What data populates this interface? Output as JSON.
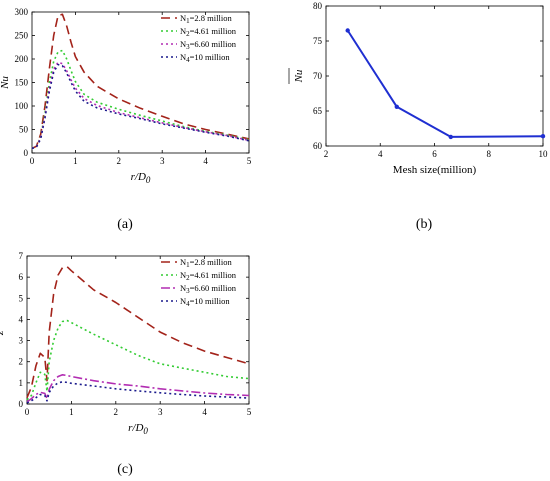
{
  "panels": {
    "a": {
      "label": "(a)"
    },
    "b": {
      "label": "(b)"
    },
    "c": {
      "label": "(c)"
    }
  },
  "chart_data": [
    {
      "id": "a",
      "type": "line",
      "title": "",
      "xlabel": "r/D0",
      "ylabel": "Nu",
      "xlim": [
        0,
        5
      ],
      "ylim": [
        0,
        300
      ],
      "xticks": [
        "0",
        "1",
        "2",
        "3",
        "4",
        "5"
      ],
      "yticks": [
        "0",
        "50",
        "100",
        "150",
        "200",
        "250",
        "300"
      ],
      "grid": false,
      "legend": "top-right",
      "series": [
        {
          "name": "N1=2.8 million",
          "color": "#a3231a",
          "dash": "9,5",
          "x": [
            0,
            0.1,
            0.2,
            0.3,
            0.4,
            0.5,
            0.6,
            0.7,
            0.8,
            0.9,
            1.0,
            1.2,
            1.5,
            2.0,
            2.5,
            3.0,
            3.5,
            4.0,
            4.5,
            5.0
          ],
          "y": [
            10,
            14,
            40,
            100,
            180,
            250,
            292,
            295,
            270,
            235,
            205,
            172,
            142,
            115,
            95,
            78,
            62,
            50,
            40,
            30
          ]
        },
        {
          "name": "N2=4.61 million",
          "color": "#33cc33",
          "dash": "2,3",
          "x": [
            0,
            0.1,
            0.2,
            0.3,
            0.4,
            0.5,
            0.6,
            0.7,
            0.8,
            0.9,
            1.0,
            1.2,
            1.5,
            2.0,
            2.5,
            3.0,
            3.5,
            4.0,
            4.5,
            5.0
          ],
          "y": [
            10,
            13,
            35,
            85,
            150,
            195,
            215,
            218,
            200,
            175,
            152,
            125,
            108,
            93,
            80,
            68,
            56,
            46,
            38,
            28
          ]
        },
        {
          "name": "N3=6.60 million",
          "color": "#b22db2",
          "dash": "2,3",
          "x": [
            0,
            0.1,
            0.2,
            0.3,
            0.4,
            0.5,
            0.6,
            0.7,
            0.8,
            0.9,
            1.0,
            1.2,
            1.5,
            2.0,
            2.5,
            3.0,
            3.5,
            4.0,
            4.5,
            5.0
          ],
          "y": [
            10,
            13,
            33,
            78,
            138,
            178,
            193,
            190,
            175,
            155,
            138,
            116,
            101,
            86,
            75,
            64,
            54,
            45,
            37,
            27
          ]
        },
        {
          "name": "N4=10 million",
          "color": "#1a1a8c",
          "dash": "2,3",
          "x": [
            0,
            0.1,
            0.2,
            0.3,
            0.4,
            0.5,
            0.6,
            0.7,
            0.8,
            0.9,
            1.0,
            1.2,
            1.5,
            2.0,
            2.5,
            3.0,
            3.5,
            4.0,
            4.5,
            5.0
          ],
          "y": [
            10,
            12,
            30,
            75,
            132,
            172,
            188,
            186,
            170,
            150,
            132,
            110,
            96,
            83,
            73,
            62,
            53,
            44,
            36,
            26
          ]
        }
      ]
    },
    {
      "id": "b",
      "type": "line",
      "title": "",
      "xlabel": "Mesh size(million)",
      "ylabel": "Nu",
      "ylabel_overline": true,
      "xlim": [
        2,
        10
      ],
      "ylim": [
        60,
        80
      ],
      "xticks": [
        "2",
        "4",
        "6",
        "8",
        "10"
      ],
      "yticks": [
        "60",
        "65",
        "70",
        "75",
        "80"
      ],
      "grid": false,
      "series": [
        {
          "color": "#1f2fd1",
          "x": [
            2.8,
            4.61,
            6.6,
            10
          ],
          "y": [
            76.5,
            65.6,
            61.3,
            61.4
          ]
        }
      ]
    },
    {
      "id": "c",
      "type": "line",
      "title": "",
      "xlabel": "r/D0",
      "ylabel": "z+",
      "xlim": [
        0,
        5
      ],
      "ylim": [
        0,
        7
      ],
      "xticks": [
        "0",
        "1",
        "2",
        "3",
        "4",
        "5"
      ],
      "yticks": [
        "0",
        "1",
        "2",
        "3",
        "4",
        "5",
        "6",
        "7"
      ],
      "grid": false,
      "legend": "top-right",
      "series": [
        {
          "name": "N1=2.8 million",
          "color": "#a3231a",
          "dash": "9,5",
          "x": [
            0,
            0.1,
            0.2,
            0.3,
            0.4,
            0.45,
            0.5,
            0.6,
            0.7,
            0.8,
            0.9,
            1.0,
            1.5,
            2.0,
            2.5,
            3.0,
            3.5,
            4.0,
            4.5,
            5.0
          ],
          "y": [
            0.3,
            0.8,
            1.8,
            2.4,
            2.2,
            1.1,
            3.4,
            5.2,
            6.1,
            6.45,
            6.5,
            6.3,
            5.4,
            4.8,
            4.1,
            3.4,
            2.9,
            2.5,
            2.2,
            1.9
          ]
        },
        {
          "name": "N2=4.61 million",
          "color": "#33cc33",
          "dash": "2,3",
          "x": [
            0,
            0.1,
            0.2,
            0.3,
            0.4,
            0.45,
            0.5,
            0.6,
            0.7,
            0.8,
            0.9,
            1.0,
            1.5,
            2.0,
            2.5,
            3.0,
            3.5,
            4.0,
            4.5,
            5.0
          ],
          "y": [
            0.2,
            0.4,
            1.0,
            1.5,
            1.4,
            0.6,
            2.0,
            3.0,
            3.6,
            3.9,
            3.95,
            3.85,
            3.3,
            2.8,
            2.3,
            1.9,
            1.7,
            1.5,
            1.3,
            1.2
          ]
        },
        {
          "name": "N3=6.60 million",
          "color": "#b22db2",
          "dash": "9,3,2,3",
          "x": [
            0,
            0.1,
            0.2,
            0.3,
            0.4,
            0.45,
            0.5,
            0.6,
            0.7,
            0.8,
            0.9,
            1.0,
            1.5,
            2.0,
            2.5,
            3.0,
            3.5,
            4.0,
            4.5,
            5.0
          ],
          "y": [
            0.1,
            0.25,
            0.45,
            0.55,
            0.5,
            0.25,
            0.7,
            1.1,
            1.3,
            1.38,
            1.35,
            1.3,
            1.1,
            0.95,
            0.85,
            0.72,
            0.62,
            0.52,
            0.45,
            0.4
          ]
        },
        {
          "name": "N4=10 million",
          "color": "#1a1a8c",
          "dash": "2,3",
          "x": [
            0,
            0.1,
            0.2,
            0.3,
            0.4,
            0.45,
            0.5,
            0.6,
            0.7,
            0.8,
            0.9,
            1.0,
            1.5,
            2.0,
            2.5,
            3.0,
            3.5,
            4.0,
            4.5,
            5.0
          ],
          "y": [
            0.05,
            0.15,
            0.3,
            0.45,
            0.4,
            0.15,
            0.55,
            0.85,
            1.0,
            1.05,
            1.02,
            0.98,
            0.85,
            0.72,
            0.62,
            0.53,
            0.45,
            0.38,
            0.33,
            0.28
          ]
        }
      ]
    }
  ]
}
